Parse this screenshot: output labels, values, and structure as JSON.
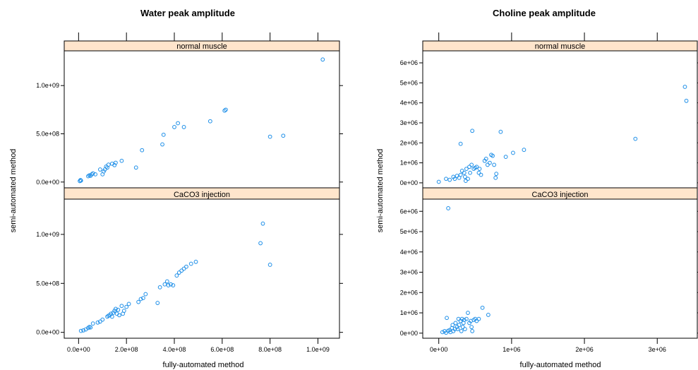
{
  "colors": {
    "point": "#1e8fe8",
    "strip": "#ffe5cc",
    "frame": "#000000"
  },
  "chart_data": [
    {
      "type": "scatter",
      "title": "Water peak amplitude",
      "xlabel": "fully-automated method",
      "ylabel": "semi-automated method",
      "xlim": [
        -60000000.0,
        1090000000.0
      ],
      "ylim": [
        -60000000.0,
        1360000000.0
      ],
      "xticks": [
        0,
        200000000.0,
        400000000.0,
        600000000.0,
        800000000.0,
        1000000000.0
      ],
      "xtick_labels": [
        "0.0e+00",
        "2.0e+08",
        "4.0e+08",
        "6.0e+08",
        "8.0e+08",
        "1.0e+09"
      ],
      "yticks": [
        0,
        500000000.0,
        1000000000.0
      ],
      "ytick_labels": [
        "0.0e+00",
        "5.0e+08",
        "1.0e+09"
      ],
      "panels": [
        {
          "strip": "normal muscle",
          "points": [
            [
              5000000.0,
              10000000.0
            ],
            [
              8000000.0,
              20000000.0
            ],
            [
              10000000.0,
              15000000.0
            ],
            [
              40000000.0,
              60000000.0
            ],
            [
              45000000.0,
              70000000.0
            ],
            [
              50000000.0,
              65000000.0
            ],
            [
              55000000.0,
              80000000.0
            ],
            [
              60000000.0,
              90000000.0
            ],
            [
              70000000.0,
              80000000.0
            ],
            [
              90000000.0,
              130000000.0
            ],
            [
              100000000.0,
              80000000.0
            ],
            [
              105000000.0,
              110000000.0
            ],
            [
              110000000.0,
              130000000.0
            ],
            [
              115000000.0,
              160000000.0
            ],
            [
              120000000.0,
              150000000.0
            ],
            [
              125000000.0,
              180000000.0
            ],
            [
              140000000.0,
              190000000.0
            ],
            [
              150000000.0,
              175000000.0
            ],
            [
              155000000.0,
              200000000.0
            ],
            [
              180000000.0,
              220000000.0
            ],
            [
              240000000.0,
              150000000.0
            ],
            [
              265000000.0,
              330000000.0
            ],
            [
              350000000.0,
              390000000.0
            ],
            [
              355000000.0,
              490000000.0
            ],
            [
              400000000.0,
              570000000.0
            ],
            [
              415000000.0,
              610000000.0
            ],
            [
              440000000.0,
              570000000.0
            ],
            [
              550000000.0,
              630000000.0
            ],
            [
              610000000.0,
              740000000.0
            ],
            [
              615000000.0,
              750000000.0
            ],
            [
              800000000.0,
              470000000.0
            ],
            [
              855000000.0,
              480000000.0
            ],
            [
              1020000000.0,
              1270000000.0
            ]
          ]
        },
        {
          "strip": "CaCO3 injection",
          "points": [
            [
              10000000.0,
              15000000.0
            ],
            [
              20000000.0,
              20000000.0
            ],
            [
              30000000.0,
              30000000.0
            ],
            [
              40000000.0,
              45000000.0
            ],
            [
              45000000.0,
              55000000.0
            ],
            [
              50000000.0,
              50000000.0
            ],
            [
              60000000.0,
              90000000.0
            ],
            [
              80000000.0,
              100000000.0
            ],
            [
              90000000.0,
              110000000.0
            ],
            [
              100000000.0,
              130000000.0
            ],
            [
              120000000.0,
              160000000.0
            ],
            [
              125000000.0,
              170000000.0
            ],
            [
              130000000.0,
              175000000.0
            ],
            [
              135000000.0,
              190000000.0
            ],
            [
              140000000.0,
              160000000.0
            ],
            [
              145000000.0,
              200000000.0
            ],
            [
              150000000.0,
              220000000.0
            ],
            [
              155000000.0,
              240000000.0
            ],
            [
              160000000.0,
              190000000.0
            ],
            [
              165000000.0,
              230000000.0
            ],
            [
              170000000.0,
              175000000.0
            ],
            [
              180000000.0,
              270000000.0
            ],
            [
              185000000.0,
              190000000.0
            ],
            [
              190000000.0,
              220000000.0
            ],
            [
              200000000.0,
              260000000.0
            ],
            [
              210000000.0,
              290000000.0
            ],
            [
              250000000.0,
              310000000.0
            ],
            [
              260000000.0,
              340000000.0
            ],
            [
              270000000.0,
              350000000.0
            ],
            [
              280000000.0,
              390000000.0
            ],
            [
              330000000.0,
              300000000.0
            ],
            [
              340000000.0,
              460000000.0
            ],
            [
              360000000.0,
              490000000.0
            ],
            [
              370000000.0,
              520000000.0
            ],
            [
              375000000.0,
              480000000.0
            ],
            [
              385000000.0,
              490000000.0
            ],
            [
              395000000.0,
              480000000.0
            ],
            [
              410000000.0,
              580000000.0
            ],
            [
              420000000.0,
              610000000.0
            ],
            [
              430000000.0,
              630000000.0
            ],
            [
              440000000.0,
              650000000.0
            ],
            [
              450000000.0,
              670000000.0
            ],
            [
              470000000.0,
              700000000.0
            ],
            [
              490000000.0,
              720000000.0
            ],
            [
              760000000.0,
              910000000.0
            ],
            [
              770000000.0,
              1110000000.0
            ],
            [
              800000000.0,
              690000000.0
            ]
          ]
        }
      ]
    },
    {
      "type": "scatter",
      "title": "Choline peak amplitude",
      "xlabel": "fully-automated method",
      "ylabel": "semi-automated method",
      "xlim": [
        -220000.0,
        3550000.0
      ],
      "ylim": [
        -250000.0,
        6600000.0
      ],
      "xticks": [
        0,
        1000000.0,
        2000000.0,
        3000000.0
      ],
      "xtick_labels": [
        "0e+00",
        "1e+06",
        "2e+06",
        "3e+06"
      ],
      "yticks": [
        0,
        1000000.0,
        2000000.0,
        3000000.0,
        4000000.0,
        5000000.0,
        6000000.0
      ],
      "ytick_labels": [
        "0e+00",
        "1e+06",
        "2e+06",
        "3e+06",
        "4e+06",
        "5e+06",
        "6e+06"
      ],
      "panels": [
        {
          "strip": "normal muscle",
          "points": [
            [
              0,
              50000.0
            ],
            [
              100000.0,
              200000.0
            ],
            [
              150000.0,
              150000.0
            ],
            [
              200000.0,
              300000.0
            ],
            [
              220000.0,
              200000.0
            ],
            [
              250000.0,
              350000.0
            ],
            [
              280000.0,
              250000.0
            ],
            [
              300000.0,
              1950000.0
            ],
            [
              300000.0,
              400000.0
            ],
            [
              320000.0,
              600000.0
            ],
            [
              350000.0,
              500000.0
            ],
            [
              360000.0,
              300000.0
            ],
            [
              370000.0,
              100000.0
            ],
            [
              380000.0,
              700000.0
            ],
            [
              400000.0,
              200000.0
            ],
            [
              420000.0,
              800000.0
            ],
            [
              430000.0,
              500000.0
            ],
            [
              450000.0,
              900000.0
            ],
            [
              460000.0,
              2600000.0
            ],
            [
              480000.0,
              700000.0
            ],
            [
              500000.0,
              750000.0
            ],
            [
              520000.0,
              800000.0
            ],
            [
              550000.0,
              500000.0
            ],
            [
              560000.0,
              700000.0
            ],
            [
              580000.0,
              400000.0
            ],
            [
              630000.0,
              1100000.0
            ],
            [
              650000.0,
              1200000.0
            ],
            [
              670000.0,
              900000.0
            ],
            [
              700000.0,
              1000000.0
            ],
            [
              720000.0,
              1400000.0
            ],
            [
              740000.0,
              1350000.0
            ],
            [
              760000.0,
              900000.0
            ],
            [
              780000.0,
              250000.0
            ],
            [
              790000.0,
              450000.0
            ],
            [
              850000.0,
              2550000.0
            ],
            [
              920000.0,
              1300000.0
            ],
            [
              1020000.0,
              1500000.0
            ],
            [
              1170000.0,
              1650000.0
            ],
            [
              2700000.0,
              2200000.0
            ],
            [
              3380000.0,
              4800000.0
            ],
            [
              3400000.0,
              4100000.0
            ]
          ]
        },
        {
          "strip": "CaCO3 injection",
          "points": [
            [
              50000.0,
              50000.0
            ],
            [
              80000.0,
              100000.0
            ],
            [
              100000.0,
              20000.0
            ],
            [
              110000.0,
              750000.0
            ],
            [
              130000.0,
              6150000.0
            ],
            [
              130000.0,
              120000.0
            ],
            [
              150000.0,
              150000.0
            ],
            [
              160000.0,
              50000.0
            ],
            [
              180000.0,
              250000.0
            ],
            [
              190000.0,
              400000.0
            ],
            [
              200000.0,
              100000.0
            ],
            [
              220000.0,
              200000.0
            ],
            [
              230000.0,
              500000.0
            ],
            [
              250000.0,
              300000.0
            ],
            [
              260000.0,
              200000.0
            ],
            [
              270000.0,
              700000.0
            ],
            [
              280000.0,
              400000.0
            ],
            [
              300000.0,
              600000.0
            ],
            [
              310000.0,
              100000.0
            ],
            [
              320000.0,
              700000.0
            ],
            [
              330000.0,
              300000.0
            ],
            [
              340000.0,
              500000.0
            ],
            [
              350000.0,
              650000.0
            ],
            [
              360000.0,
              200000.0
            ],
            [
              380000.0,
              700000.0
            ],
            [
              400000.0,
              1000000.0
            ],
            [
              420000.0,
              500000.0
            ],
            [
              440000.0,
              600000.0
            ],
            [
              450000.0,
              300000.0
            ],
            [
              460000.0,
              100000.0
            ],
            [
              480000.0,
              650000.0
            ],
            [
              500000.0,
              700000.0
            ],
            [
              520000.0,
              600000.0
            ],
            [
              550000.0,
              700000.0
            ],
            [
              600000.0,
              1250000.0
            ],
            [
              680000.0,
              900000.0
            ]
          ]
        }
      ]
    }
  ]
}
